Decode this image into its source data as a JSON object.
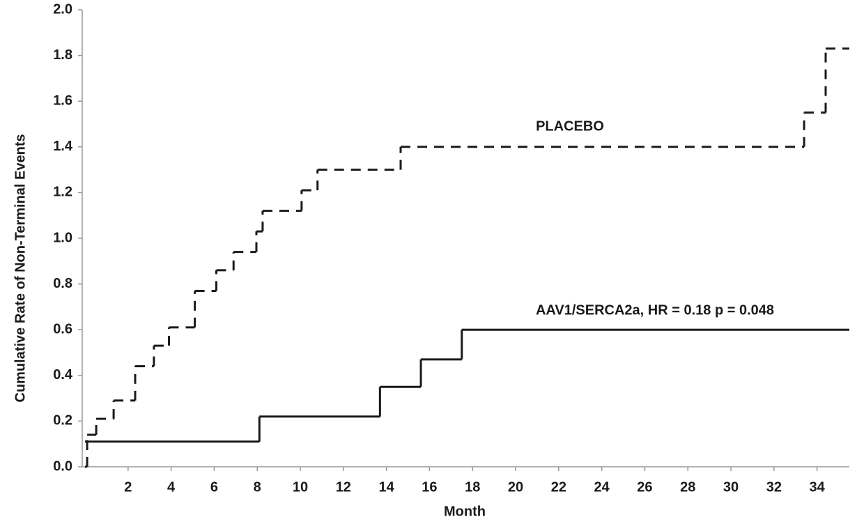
{
  "chart_data": {
    "type": "step",
    "x_label": "Month",
    "y_label": "Cumulative Rate of Non-Terminal Events",
    "xlim": [
      0,
      35.5
    ],
    "ylim": [
      0,
      2
    ],
    "xticks": [
      2,
      4,
      6,
      8,
      10,
      12,
      14,
      16,
      18,
      20,
      22,
      24,
      26,
      28,
      30,
      32,
      34
    ],
    "yticks": [
      {
        "value": 0,
        "label": "0.0"
      },
      0.2,
      0.4,
      0.6,
      0.8,
      {
        "value": 1,
        "label": "1.0"
      },
      1.2,
      1.4,
      1.6,
      1.8,
      {
        "value": 2,
        "label": "2.0"
      }
    ],
    "series": [
      {
        "name": "PLACEBO",
        "color": "#1a1a1a",
        "dashed": true,
        "x": [
          0,
          0.1,
          0.52,
          1.33,
          2.33,
          3.2,
          3.9,
          5.1,
          6.1,
          6.9,
          7.96,
          8.25,
          10.06,
          10.8,
          14.66,
          33.4,
          34.4
        ],
        "values": [
          0,
          0.14,
          0.21,
          0.29,
          0.44,
          0.53,
          0.61,
          0.77,
          0.86,
          0.94,
          1.03,
          1.12,
          1.21,
          1.3,
          1.4,
          1.55,
          1.83
        ]
      },
      {
        "name": "AAV1/SERCA2a, HR = 0.18  p = 0.048",
        "color": "#1a1a1a",
        "dashed": false,
        "x": [
          0,
          8.1,
          13.7,
          15.6,
          17.5
        ],
        "values": [
          0.11,
          0.22,
          0.35,
          0.47,
          0.6
        ]
      }
    ]
  }
}
